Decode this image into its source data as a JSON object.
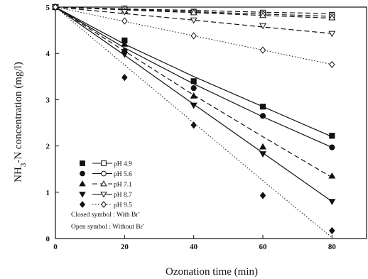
{
  "chart_data": {
    "type": "scatter",
    "xlabel": "Ozonation time (min)",
    "ylabel_parts": {
      "pre": "NH",
      "sub": "3",
      "post": "-N concentration (mg/l)"
    },
    "xlim": [
      0,
      90
    ],
    "ylim": [
      0,
      5
    ],
    "xticks": [
      0,
      20,
      40,
      60,
      80
    ],
    "yticks": [
      0,
      1,
      2,
      3,
      4,
      5
    ],
    "grid": false,
    "legend_position": "bottom-left",
    "x": [
      0,
      20,
      40,
      60,
      80
    ],
    "series": [
      {
        "name": "pH 4.9",
        "group": "closed",
        "marker": "square",
        "filled": true,
        "style": "solid",
        "values": [
          5.0,
          4.28,
          3.4,
          2.85,
          2.22
        ],
        "fit": [
          5.0,
          4.2,
          3.5,
          2.85,
          2.2
        ]
      },
      {
        "name": "pH 5.6",
        "group": "closed",
        "marker": "circle",
        "filled": true,
        "style": "solid",
        "values": [
          5.0,
          4.05,
          3.25,
          2.65,
          1.97
        ],
        "fit": [
          5.0,
          4.12,
          3.34,
          2.63,
          1.97
        ]
      },
      {
        "name": "pH 7.1",
        "group": "closed",
        "marker": "triangle-up",
        "filled": true,
        "style": "dashed",
        "values": [
          5.0,
          4.2,
          3.08,
          1.98,
          1.35
        ],
        "fit": [
          5.0,
          4.05,
          3.1,
          2.2,
          1.32
        ]
      },
      {
        "name": "pH 8.7",
        "group": "closed",
        "marker": "triangle-down",
        "filled": true,
        "style": "solid",
        "values": [
          5.0,
          3.98,
          2.88,
          1.83,
          0.8
        ],
        "fit": [
          5.0,
          3.96,
          2.9,
          1.85,
          0.8
        ]
      },
      {
        "name": "pH 9.5",
        "group": "closed",
        "marker": "diamond",
        "filled": true,
        "style": "dotted",
        "values": [
          5.0,
          3.48,
          2.45,
          0.93,
          0.17
        ],
        "fit": [
          5.0,
          3.75,
          2.5,
          1.25,
          0.02
        ]
      },
      {
        "name": "pH 4.9",
        "group": "open",
        "marker": "square",
        "filled": false,
        "style": "dashed",
        "values": [
          5.0,
          4.97,
          4.9,
          4.88,
          4.83
        ],
        "fit": [
          5.0,
          4.96,
          4.93,
          4.89,
          4.86
        ]
      },
      {
        "name": "pH 5.6",
        "group": "open",
        "marker": "circle",
        "filled": false,
        "style": "dashed",
        "values": [
          5.0,
          4.95,
          4.9,
          4.85,
          4.8
        ],
        "fit": [
          5.0,
          4.95,
          4.9,
          4.85,
          4.8
        ]
      },
      {
        "name": "pH 7.1",
        "group": "open",
        "marker": "triangle-up",
        "filled": false,
        "style": "dashed",
        "values": [
          5.0,
          4.92,
          4.88,
          4.82,
          4.77
        ],
        "fit": [
          5.0,
          4.94,
          4.88,
          4.82,
          4.76
        ]
      },
      {
        "name": "pH 8.7",
        "group": "open",
        "marker": "triangle-down",
        "filled": false,
        "style": "dashed",
        "values": [
          5.0,
          4.9,
          4.72,
          4.6,
          4.43
        ],
        "fit": [
          5.0,
          4.86,
          4.72,
          4.57,
          4.43
        ]
      },
      {
        "name": "pH 9.5",
        "group": "open",
        "marker": "diamond",
        "filled": false,
        "style": "dotted",
        "values": [
          5.0,
          4.7,
          4.38,
          4.07,
          3.76
        ],
        "fit": [
          5.0,
          4.69,
          4.38,
          4.07,
          3.76
        ]
      }
    ],
    "legend": {
      "entries": [
        "pH 4.9",
        "pH 5.6",
        "pH 7.1",
        "pH 8.7",
        "pH 9.5"
      ],
      "markers": [
        "square",
        "circle",
        "triangle-up",
        "triangle-down",
        "diamond"
      ],
      "styles": [
        "solid",
        "solid",
        "dashed",
        "solid",
        "dotted"
      ],
      "note_closed": "Closed symbol : With Br",
      "note_open": "Open symbol : Without Br",
      "note_sup": "-"
    }
  }
}
